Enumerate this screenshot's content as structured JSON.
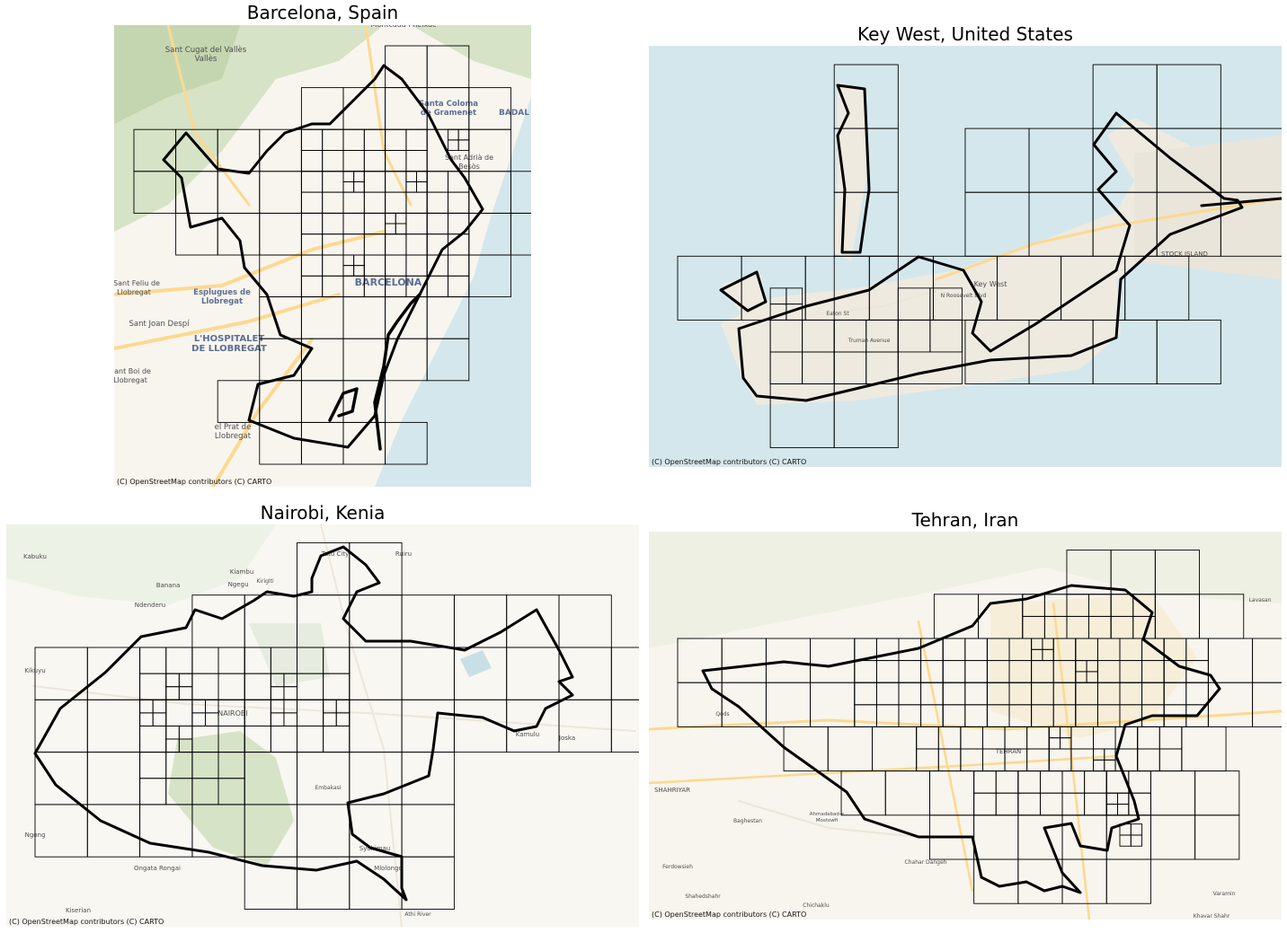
{
  "attribution": "(C) OpenStreetMap contributors (C) CARTO",
  "colors": {
    "water": "#d4e7ec",
    "land_light": "#f8f5ef",
    "green": "#d6e3c6",
    "green_dark": "#c4d6b0",
    "road_major": "#fcd98f",
    "road_minor": "#ece6da",
    "boundary": "#000000",
    "grid": "#000000",
    "label": "#4c4c4c"
  },
  "panels": [
    {
      "id": "barcelona",
      "title": "Barcelona, Spain",
      "labels": [
        "Sant Cugat del Vallès",
        "Montcada i Reixac",
        "Santa Coloma de Gramenet",
        "BADAL",
        "Sant Adrià de Besòs",
        "Sant Feliu de Llobregat",
        "Esplugues de Llobregat",
        "BARCELONA",
        "Sant Joan Despí",
        "L'HOSPITALET DE LLOBREGAT",
        "Sant Boi de Llobregat",
        "el Prat de Llobregat"
      ]
    },
    {
      "id": "keywest",
      "title": "Key West, United States",
      "labels": [
        "Key West",
        "STOCK ISLAND",
        "N Roosevelt Blvd",
        "Truman Avenue",
        "Eaton St"
      ]
    },
    {
      "id": "nairobi",
      "title": "Nairobi, Kenia",
      "labels": [
        "Kabuku",
        "Banana",
        "Kiambu",
        "Ngegu",
        "Kiriglti",
        "Ruiru",
        "Tatu City",
        "Ndenderu",
        "Kikuyu",
        "NAIROBI",
        "Kamulu",
        "Joska",
        "Ongata Rongai",
        "Syokimau",
        "Mlolongo",
        "Ngong",
        "Kiserian",
        "Athi River",
        "Embakasi"
      ]
    },
    {
      "id": "tehran",
      "title": "Tehran, Iran",
      "labels": [
        "TEHRAN",
        "SHAHRIYAR",
        "Ahmadabad-e Mostowfi",
        "Chahar Dangeh",
        "Qods",
        "Baghestan",
        "Ferdowsieh",
        "Shahedshahr",
        "Chichaklu",
        "Lavasan",
        "Khavar Shahr",
        "Varamin"
      ]
    }
  ]
}
